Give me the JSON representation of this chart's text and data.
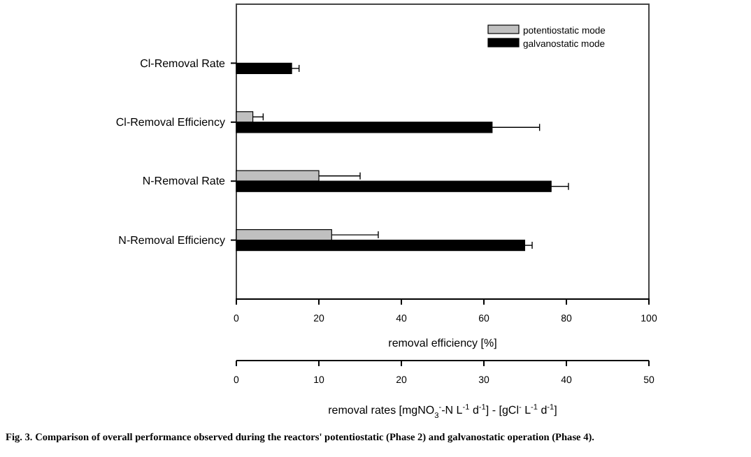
{
  "chart_data": {
    "type": "bar",
    "orientation": "horizontal",
    "categories": [
      "Cl-Removal Rate",
      "Cl-Removal Efficiency",
      "N-Removal Rate",
      "N-Removal Efficiency"
    ],
    "series": [
      {
        "name": "potentiostatic mode",
        "color": "#c0c0c0",
        "values": [
          null,
          4,
          20,
          23.1
        ],
        "errors": [
          null,
          2.5,
          10,
          11.3
        ]
      },
      {
        "name": "galvanostatic mode",
        "color": "#000000",
        "values": [
          13.4,
          62,
          76.3,
          69.9
        ],
        "errors": [
          1.8,
          11.5,
          4.2,
          1.8
        ]
      }
    ],
    "xlim": [
      0,
      100
    ],
    "xticks": [
      0,
      20,
      40,
      60,
      80,
      100
    ],
    "xlabel": "removal efficiency [%]",
    "x2lim": [
      0,
      50
    ],
    "x2ticks": [
      0,
      10,
      20,
      30,
      40,
      50
    ],
    "x2label": "removal rates [mgNO$_{3}$$^{-}$-N L$^{-1}$ d$^{-1}$] - [gCl$^{-}$ L$^{-1}$ d$^{-1}$]",
    "legend": "top right",
    "grid": false,
    "annotations": [
      "Fig. 3. Comparison of overall performance observed during the reactors' potentiostatic (Phase 2) and galvanostatic operation (Phase 4)."
    ]
  }
}
